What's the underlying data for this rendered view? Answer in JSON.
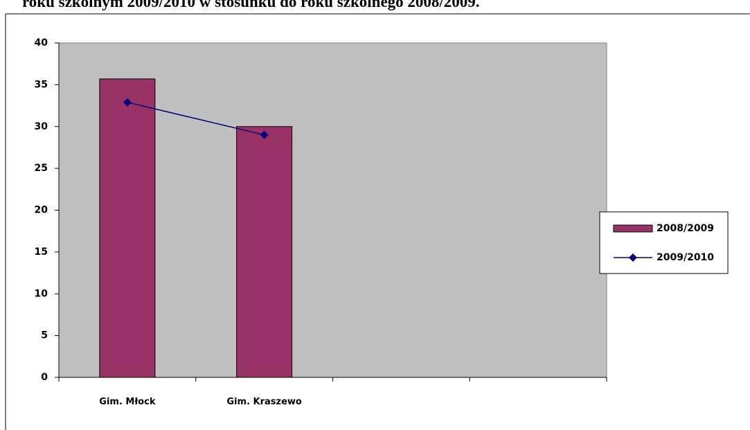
{
  "chart_data": {
    "type": "bar",
    "title": "roku szkolnym 2009/2010 w stosunku do roku szkolnego 2008/2009.",
    "categories": [
      "Gim. Młock",
      "Gim. Kraszewo",
      null,
      null
    ],
    "series": [
      {
        "name": "2008/2009",
        "type": "bar",
        "color": "#993366",
        "values": [
          35.7,
          30,
          null,
          null
        ]
      },
      {
        "name": "2009/2010",
        "type": "line",
        "color": "#000080",
        "values": [
          32.9,
          29,
          null,
          null
        ]
      }
    ],
    "ylim": [
      0,
      40
    ],
    "yticks": [
      0,
      5,
      10,
      15,
      20,
      25,
      30,
      35,
      40
    ],
    "plot_background": "#c0c0c0",
    "legend": "right"
  }
}
